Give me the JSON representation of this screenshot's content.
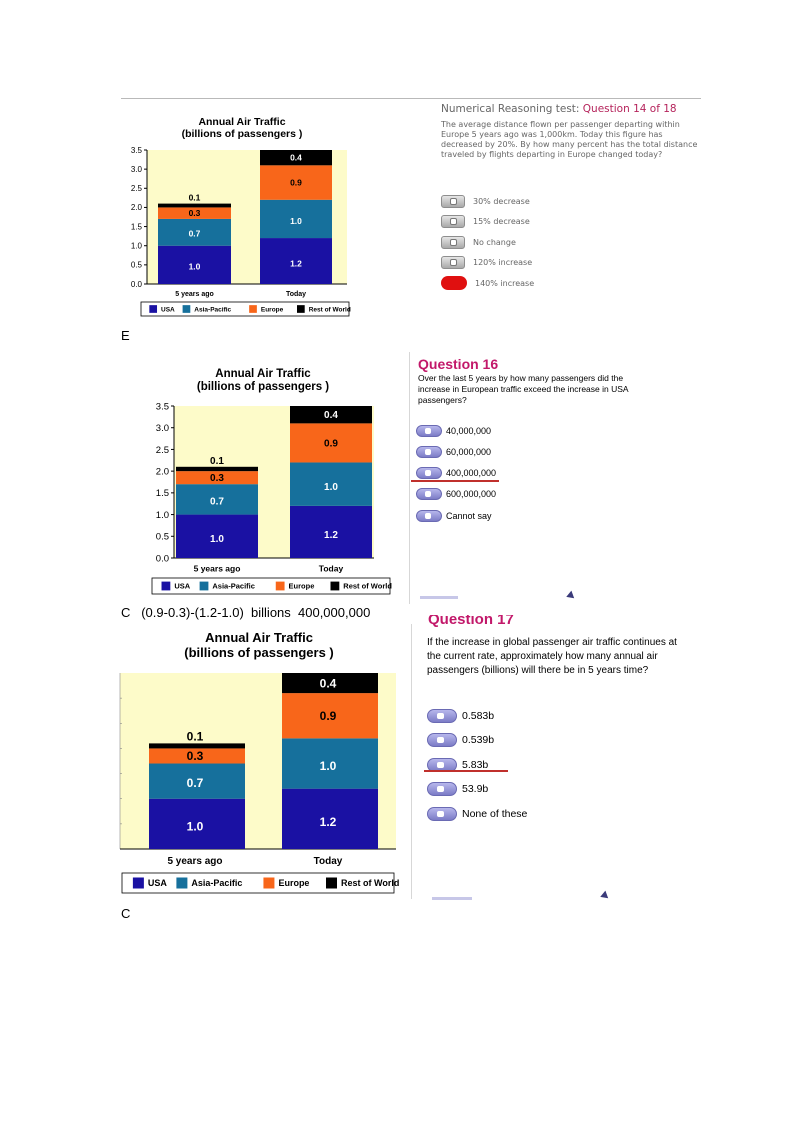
{
  "chart_data": [
    {
      "type": "bar",
      "stacked": true,
      "title": "Annual Air Traffic",
      "subtitle": "(billions of passengers )",
      "categories": [
        "5 years ago",
        "Today"
      ],
      "series": [
        {
          "name": "USA",
          "values": [
            1.0,
            1.2
          ]
        },
        {
          "name": "Asia-Pacific",
          "values": [
            0.7,
            1.0
          ]
        },
        {
          "name": "Europe",
          "values": [
            0.3,
            0.9
          ]
        },
        {
          "name": "Rest of World",
          "values": [
            0.1,
            0.4
          ]
        }
      ],
      "data_labels": [
        [
          "1.0",
          "0.7",
          "0.3",
          "0.1"
        ],
        [
          "1.2",
          "1.0",
          "0.9",
          "0.4"
        ]
      ],
      "ylim": [
        0,
        3.5
      ],
      "yticks": [
        "0.0",
        "0.5",
        "1.0",
        "1.5",
        "2.0",
        "2.5",
        "3.0",
        "3.5"
      ],
      "legend": "bottom",
      "xlabel": "",
      "ylabel": ""
    },
    {
      "type": "bar",
      "stacked": true,
      "title": "Annual Air Traffic",
      "subtitle": "(billions of passengers )",
      "categories": [
        "5 years ago",
        "Today"
      ],
      "series": [
        {
          "name": "USA",
          "values": [
            1.0,
            1.2
          ]
        },
        {
          "name": "Asia-Pacific",
          "values": [
            0.7,
            1.0
          ]
        },
        {
          "name": "Europe",
          "values": [
            0.3,
            0.9
          ]
        },
        {
          "name": "Rest of World",
          "values": [
            0.1,
            0.4
          ]
        }
      ],
      "data_labels": [
        [
          "1.0",
          "0.7",
          "0.3",
          "0.1"
        ],
        [
          "1.2",
          "1.0",
          "0.9",
          "0.4"
        ]
      ],
      "ylim": [
        0,
        3.5
      ],
      "yticks": [
        "0.0",
        "0.5",
        "1.0",
        "1.5",
        "2.0",
        "2.5",
        "3.0",
        "3.5"
      ],
      "legend": "bottom",
      "xlabel": "",
      "ylabel": ""
    },
    {
      "type": "bar",
      "stacked": true,
      "title": "Annual Air Traffic",
      "subtitle": "(billions of passengers )",
      "categories": [
        "5 years ago",
        "Today"
      ],
      "series": [
        {
          "name": "USA",
          "values": [
            1.0,
            1.2
          ]
        },
        {
          "name": "Asia-Pacific",
          "values": [
            0.7,
            1.0
          ]
        },
        {
          "name": "Europe",
          "values": [
            0.3,
            0.9
          ]
        },
        {
          "name": "Rest of World",
          "values": [
            0.1,
            0.4
          ]
        }
      ],
      "data_labels": [
        [
          "1.0",
          "0.7",
          "0.3",
          "0.1"
        ],
        [
          "1.2",
          "1.0",
          "0.9",
          "0.4"
        ]
      ],
      "ylim": [
        0,
        3.5
      ],
      "yticks": [],
      "legend": "bottom",
      "xlabel": "",
      "ylabel": ""
    }
  ],
  "colors": {
    "usa": "#1a11a3",
    "asia_pacific": "#16709c",
    "europe": "#f8661a",
    "rest_of_world": "#000000",
    "plot_bg": "#fdfbc9",
    "question_accent": "#c2186a",
    "answer_mark": "#c0302c"
  },
  "q14": {
    "prefix": "Numerical Reasoning test: ",
    "number": "Question 14 of 18",
    "text": "The average distance flown per passenger departing within Europe 5 years ago was 1,000km.  Today this figure has decreased by 20%.  By how many percent has the total distance traveled by flights departing in Europe changed today?",
    "options": [
      "30% decrease",
      "15% decrease",
      "No change",
      "120% increase",
      "140% increase"
    ],
    "answer": "E"
  },
  "q16": {
    "title": "Question 16",
    "text": "Over the last 5 years by how many passengers did the increase in European traffic exceed the increase in USA passengers?",
    "options": [
      "40,000,000",
      "60,000,000",
      "400,000,000",
      "600,000,000",
      "Cannot say"
    ],
    "answer": "C   (0.9-0.3)-(1.2-1.0)  billions  400,000,000"
  },
  "q17": {
    "title": "Question 17",
    "text": "If the increase in global passenger air traffic continues at the current rate, approximately how many annual air passengers (billions) will there be in 5 years time?",
    "options": [
      "0.583b",
      "0.539b",
      "5.83b",
      "53.9b",
      "None of these"
    ],
    "answer": "C"
  }
}
